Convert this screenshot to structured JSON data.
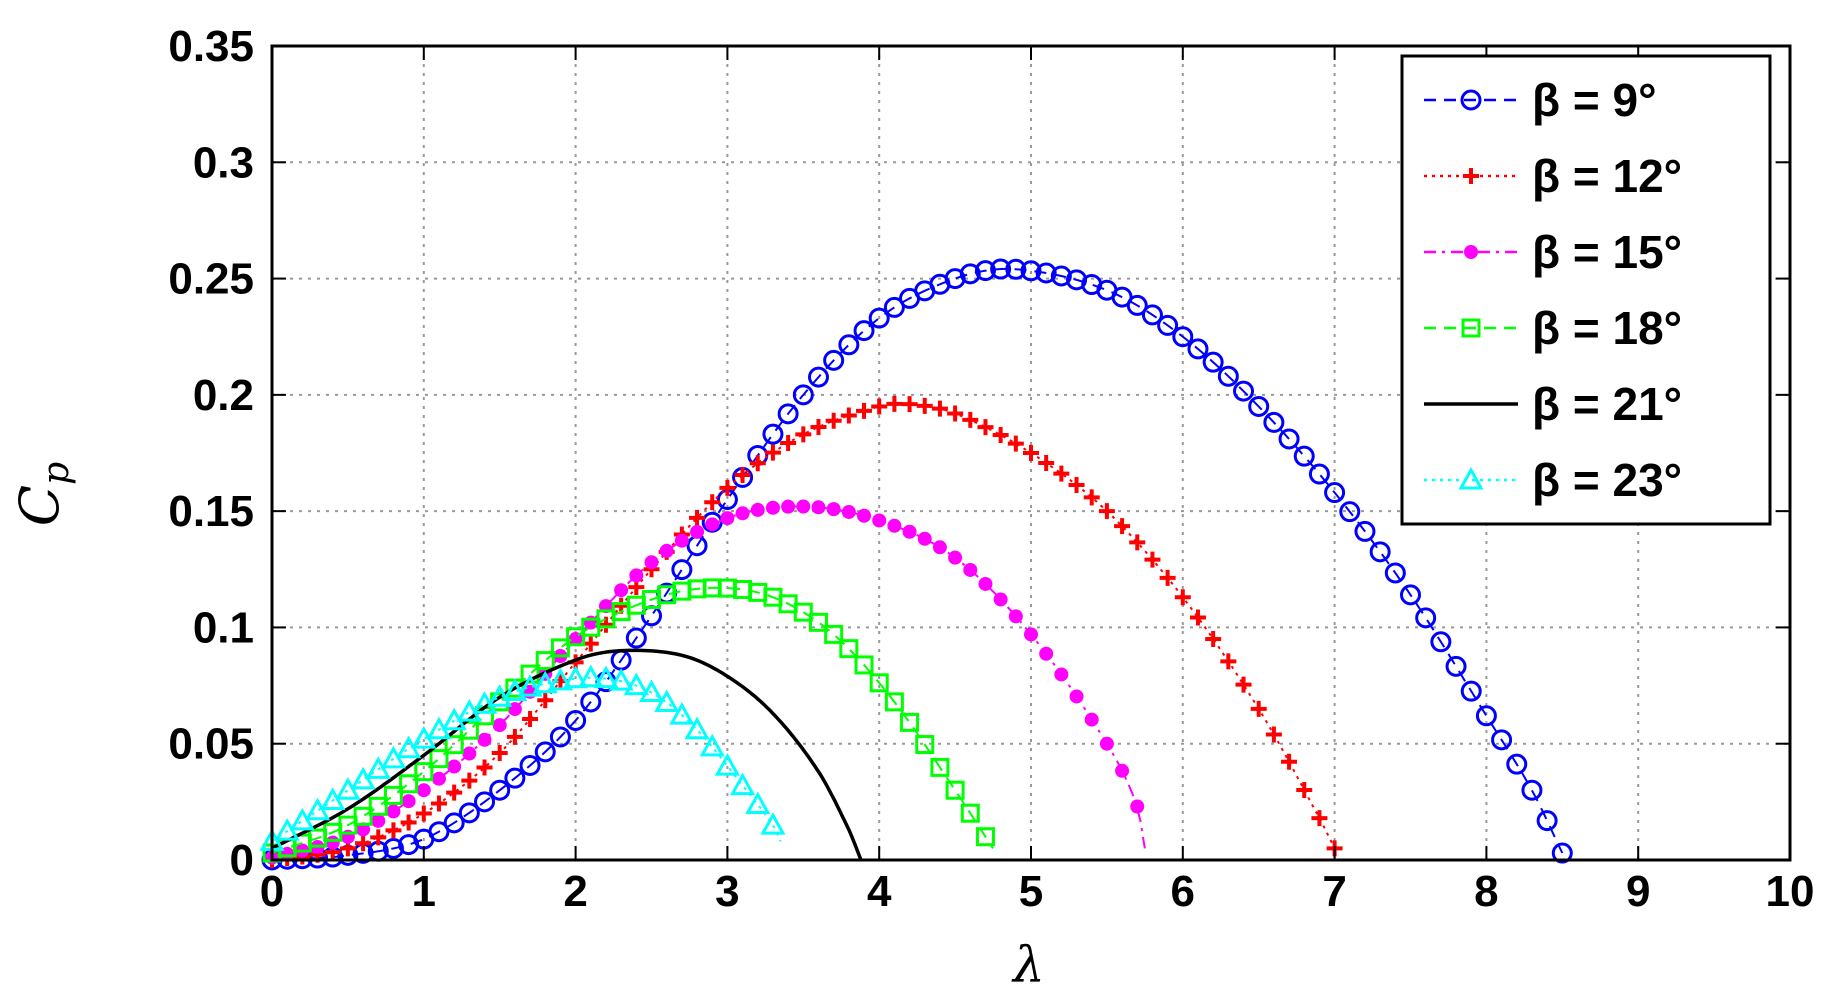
{
  "chart_data": {
    "type": "scatter",
    "title": "",
    "xlabel": "λ",
    "ylabel_main": "C",
    "ylabel_sub": "p",
    "xlim": [
      0,
      10
    ],
    "ylim": [
      0,
      0.35
    ],
    "xticks": [
      "0",
      "1",
      "2",
      "3",
      "4",
      "5",
      "6",
      "7",
      "8",
      "9",
      "10"
    ],
    "yticks": [
      "0",
      "0.05",
      "0.1",
      "0.15",
      "0.2",
      "0.25",
      "0.3",
      "0.35"
    ],
    "grid": true,
    "legend_position": "top-right",
    "series": [
      {
        "name": "β = 9°",
        "beta": "9",
        "color": "#0000ff",
        "marker": "circle",
        "line": "dashed",
        "points": [
          [
            0,
            0
          ],
          [
            0.5,
            0.002
          ],
          [
            1,
            0.009
          ],
          [
            1.5,
            0.03
          ],
          [
            2,
            0.06
          ],
          [
            2.5,
            0.105
          ],
          [
            3,
            0.155
          ],
          [
            3.5,
            0.2
          ],
          [
            4,
            0.233
          ],
          [
            4.5,
            0.25
          ],
          [
            4.9,
            0.254
          ],
          [
            5.5,
            0.245
          ],
          [
            6,
            0.225
          ],
          [
            6.5,
            0.195
          ],
          [
            7,
            0.158
          ],
          [
            7.5,
            0.114
          ],
          [
            8,
            0.062
          ],
          [
            8.3,
            0.03
          ],
          [
            8.5,
            0.003
          ]
        ]
      },
      {
        "name": "β = 12°",
        "beta": "12",
        "color": "#ff0000",
        "marker": "plus",
        "line": "dotted",
        "points": [
          [
            0,
            0
          ],
          [
            0.5,
            0.005
          ],
          [
            1,
            0.02
          ],
          [
            1.5,
            0.046
          ],
          [
            2,
            0.085
          ],
          [
            2.5,
            0.125
          ],
          [
            3,
            0.16
          ],
          [
            3.5,
            0.183
          ],
          [
            4,
            0.195
          ],
          [
            4.2,
            0.196
          ],
          [
            4.5,
            0.192
          ],
          [
            5,
            0.175
          ],
          [
            5.5,
            0.15
          ],
          [
            6,
            0.113
          ],
          [
            6.5,
            0.065
          ],
          [
            6.9,
            0.018
          ],
          [
            7,
            0.005
          ]
        ]
      },
      {
        "name": "β = 15°",
        "beta": "15",
        "color": "#ff00ff",
        "marker": "dot",
        "line": "dashdot",
        "points": [
          [
            0,
            0.001
          ],
          [
            0.5,
            0.01
          ],
          [
            1,
            0.03
          ],
          [
            1.5,
            0.058
          ],
          [
            2,
            0.095
          ],
          [
            2.5,
            0.128
          ],
          [
            3,
            0.147
          ],
          [
            3.5,
            0.152
          ],
          [
            4,
            0.146
          ],
          [
            4.5,
            0.13
          ],
          [
            5,
            0.097
          ],
          [
            5.5,
            0.05
          ],
          [
            5.7,
            0.023
          ],
          [
            5.75,
            0.005
          ]
        ]
      },
      {
        "name": "β = 18°",
        "beta": "18",
        "color": "#00ff00",
        "marker": "square",
        "line": "dashed",
        "points": [
          [
            0,
            0.003
          ],
          [
            0.5,
            0.015
          ],
          [
            1,
            0.038
          ],
          [
            1.5,
            0.068
          ],
          [
            2,
            0.096
          ],
          [
            2.5,
            0.112
          ],
          [
            2.9,
            0.117
          ],
          [
            3.3,
            0.113
          ],
          [
            3.7,
            0.097
          ],
          [
            4.1,
            0.068
          ],
          [
            4.5,
            0.03
          ],
          [
            4.75,
            0.005
          ]
        ]
      },
      {
        "name": "β = 21°",
        "beta": "21",
        "color": "#000000",
        "marker": "none",
        "line": "solid",
        "points": [
          [
            0,
            0.005
          ],
          [
            0.5,
            0.022
          ],
          [
            1,
            0.045
          ],
          [
            1.5,
            0.07
          ],
          [
            2,
            0.086
          ],
          [
            2.3,
            0.09
          ],
          [
            2.7,
            0.088
          ],
          [
            3,
            0.079
          ],
          [
            3.3,
            0.063
          ],
          [
            3.6,
            0.038
          ],
          [
            3.8,
            0.013
          ],
          [
            3.88,
            0
          ]
        ]
      },
      {
        "name": "β = 23°",
        "beta": "23",
        "color": "#00ffff",
        "marker": "triangle",
        "line": "dotted",
        "points": [
          [
            0,
            0.008
          ],
          [
            0.5,
            0.03
          ],
          [
            1,
            0.052
          ],
          [
            1.5,
            0.07
          ],
          [
            1.9,
            0.077
          ],
          [
            2.2,
            0.078
          ],
          [
            2.5,
            0.072
          ],
          [
            2.8,
            0.056
          ],
          [
            3.1,
            0.032
          ],
          [
            3.3,
            0.015
          ],
          [
            3.35,
            0.008
          ]
        ]
      }
    ]
  }
}
